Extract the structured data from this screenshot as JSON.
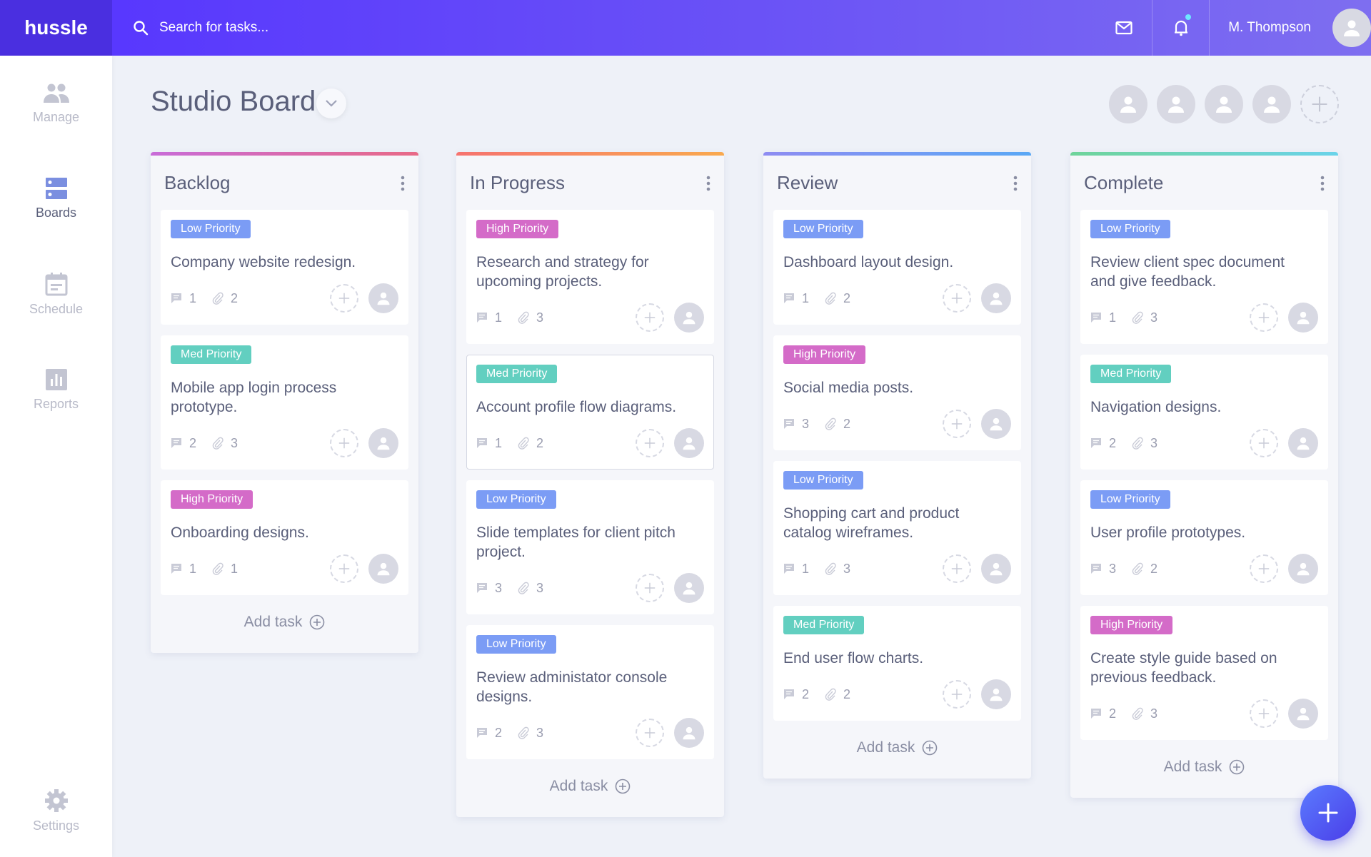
{
  "app": {
    "logo": "hussle"
  },
  "search": {
    "placeholder": "Search for tasks..."
  },
  "user": {
    "name": "M. Thompson",
    "has_notification": true
  },
  "sidebar": {
    "items": [
      {
        "label": "Manage",
        "icon": "people-icon",
        "active": false
      },
      {
        "label": "Boards",
        "icon": "boards-icon",
        "active": true
      },
      {
        "label": "Schedule",
        "icon": "calendar-icon",
        "active": false
      },
      {
        "label": "Reports",
        "icon": "chart-icon",
        "active": false
      }
    ],
    "settings": {
      "label": "Settings",
      "icon": "gear-icon"
    }
  },
  "board": {
    "title": "Studio Board",
    "member_count": 4
  },
  "priority_colors": {
    "Low Priority": "#7b9cf5",
    "Med Priority": "#62cfc0",
    "High Priority": "#d46bc8"
  },
  "add_task_label": "Add task",
  "columns": [
    {
      "title": "Backlog",
      "accent": [
        "#c86bd8",
        "#e86a86"
      ],
      "cards": [
        {
          "priority": "Low Priority",
          "title": "Company website redesign.",
          "comments": 1,
          "attachments": 2
        },
        {
          "priority": "Med Priority",
          "title": "Mobile app login process prototype.",
          "comments": 2,
          "attachments": 3
        },
        {
          "priority": "High Priority",
          "title": "Onboarding designs.",
          "comments": 1,
          "attachments": 1
        }
      ]
    },
    {
      "title": "In Progress",
      "accent": [
        "#f6736f",
        "#f9a94e"
      ],
      "cards": [
        {
          "priority": "High Priority",
          "title": "Research and strategy for upcoming projects.",
          "comments": 1,
          "attachments": 3
        },
        {
          "priority": "Med Priority",
          "title": "Account profile flow diagrams.",
          "comments": 1,
          "attachments": 2,
          "selected": true
        },
        {
          "priority": "Low Priority",
          "title": "Slide templates for client pitch project.",
          "comments": 3,
          "attachments": 3
        },
        {
          "priority": "Low Priority",
          "title": "Review administator console designs.",
          "comments": 2,
          "attachments": 3
        }
      ]
    },
    {
      "title": "Review",
      "accent": [
        "#8e8cf2",
        "#5aa8f5"
      ],
      "cards": [
        {
          "priority": "Low Priority",
          "title": "Dashboard layout design.",
          "comments": 1,
          "attachments": 2
        },
        {
          "priority": "High Priority",
          "title": "Social media posts.",
          "comments": 3,
          "attachments": 2
        },
        {
          "priority": "Low Priority",
          "title": "Shopping cart and product catalog wireframes.",
          "comments": 1,
          "attachments": 3
        },
        {
          "priority": "Med Priority",
          "title": "End user flow charts.",
          "comments": 2,
          "attachments": 2
        }
      ]
    },
    {
      "title": "Complete",
      "accent": [
        "#6fd49a",
        "#6ad3ea"
      ],
      "cards": [
        {
          "priority": "Low Priority",
          "title": "Review client spec document and give feedback.",
          "comments": 1,
          "attachments": 3
        },
        {
          "priority": "Med Priority",
          "title": "Navigation designs.",
          "comments": 2,
          "attachments": 3
        },
        {
          "priority": "Low Priority",
          "title": "User profile prototypes.",
          "comments": 3,
          "attachments": 2
        },
        {
          "priority": "High Priority",
          "title": "Create style guide based on previous feedback.",
          "comments": 2,
          "attachments": 3
        }
      ]
    }
  ]
}
